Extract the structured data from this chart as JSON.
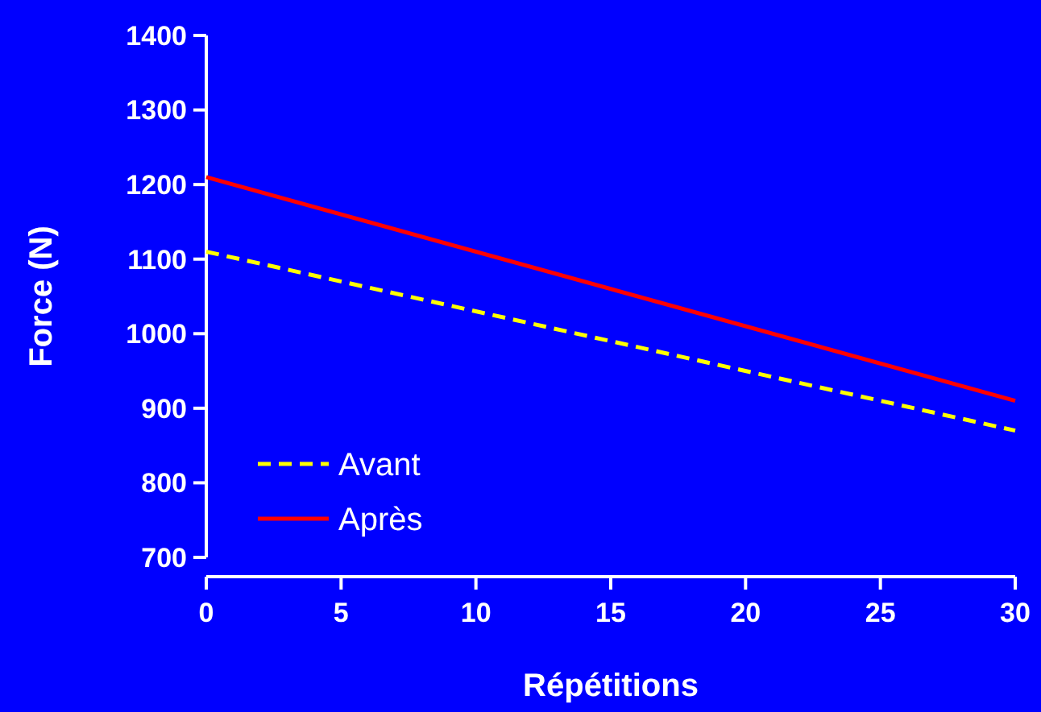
{
  "chart_data": {
    "type": "line",
    "xlabel": "Répétitions",
    "ylabel": "Force (N)",
    "x": [
      0,
      30
    ],
    "series": [
      {
        "name": "Avant",
        "color": "#ffff00",
        "values": [
          1110,
          870
        ],
        "line_style": "dashed"
      },
      {
        "name": "Après",
        "color": "#ff0000",
        "values": [
          1210,
          910
        ],
        "line_style": "solid"
      }
    ],
    "xlim": [
      0,
      30
    ],
    "xticks": [
      0,
      5,
      10,
      15,
      20,
      25,
      30
    ],
    "ylim": [
      700,
      1400
    ],
    "yticks": [
      700,
      800,
      900,
      1000,
      1100,
      1200,
      1300,
      1400
    ],
    "legend": "bottom left",
    "grid": false,
    "marker": "none"
  }
}
